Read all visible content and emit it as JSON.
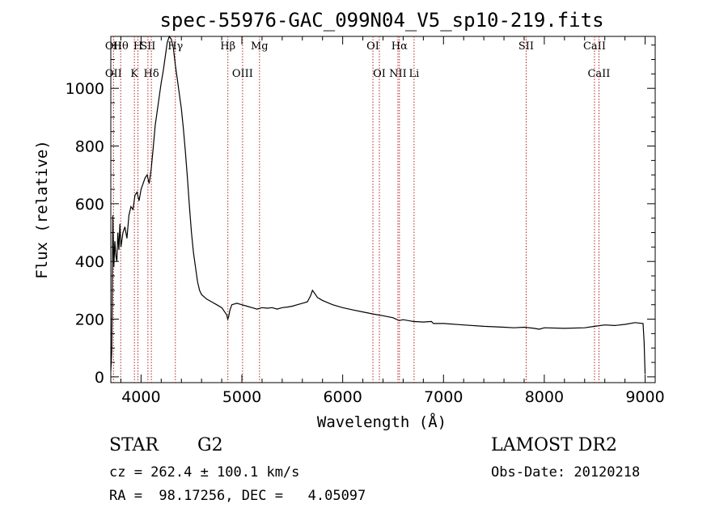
{
  "chart_data": {
    "type": "line",
    "title": "spec-55976-GAC_099N04_V5_sp10-219.fits",
    "xlabel": "Wavelength (Å)",
    "ylabel": "Flux (relative)",
    "xlim": [
      3700,
      9100
    ],
    "ylim": [
      -20,
      1180
    ],
    "xticks": [
      4000,
      5000,
      6000,
      7000,
      8000,
      9000
    ],
    "yticks": [
      0,
      200,
      400,
      600,
      800,
      1000
    ],
    "grid": false,
    "line_color": "#000000",
    "marker_color": "#b22222",
    "series": [
      {
        "x": [
          3700,
          3710,
          3720,
          3730,
          3740,
          3750,
          3760,
          3770,
          3780,
          3790,
          3800,
          3820,
          3840,
          3860,
          3880,
          3900,
          3920,
          3940,
          3960,
          3980,
          4000,
          4020,
          4040,
          4060,
          4080,
          4100,
          4120,
          4140,
          4160,
          4180,
          4200,
          4220,
          4240,
          4260,
          4280,
          4300,
          4320,
          4340,
          4360,
          4380,
          4400,
          4420,
          4440,
          4460,
          4480,
          4500,
          4520,
          4540,
          4560,
          4580,
          4600,
          4650,
          4700,
          4750,
          4800,
          4850,
          4860,
          4870,
          4880,
          4900,
          4950,
          5000,
          5050,
          5100,
          5150,
          5200,
          5250,
          5300,
          5350,
          5400,
          5450,
          5500,
          5550,
          5600,
          5650,
          5680,
          5700,
          5720,
          5750,
          5800,
          5900,
          6000,
          6100,
          6200,
          6300,
          6400,
          6500,
          6560,
          6600,
          6700,
          6800,
          6880,
          6900,
          7000,
          7200,
          7400,
          7600,
          7700,
          7800,
          7900,
          7950,
          8000,
          8200,
          8400,
          8500,
          8600,
          8700,
          8800,
          8900,
          8980,
          8990,
          9000
        ],
        "y": [
          20,
          90,
          560,
          380,
          470,
          420,
          400,
          500,
          440,
          530,
          450,
          500,
          520,
          480,
          560,
          590,
          580,
          630,
          640,
          610,
          650,
          670,
          690,
          700,
          670,
          720,
          790,
          870,
          920,
          970,
          1020,
          1060,
          1110,
          1160,
          1180,
          1170,
          1140,
          1080,
          1030,
          980,
          930,
          860,
          780,
          690,
          590,
          500,
          430,
          380,
          330,
          300,
          285,
          270,
          260,
          250,
          240,
          215,
          200,
          210,
          230,
          250,
          255,
          250,
          245,
          240,
          235,
          240,
          238,
          240,
          235,
          240,
          242,
          245,
          250,
          255,
          260,
          280,
          300,
          290,
          275,
          265,
          250,
          240,
          232,
          225,
          218,
          212,
          205,
          195,
          198,
          192,
          190,
          192,
          185,
          185,
          180,
          175,
          172,
          170,
          172,
          168,
          165,
          170,
          168,
          170,
          175,
          180,
          178,
          182,
          188,
          185,
          120,
          10
        ]
      }
    ],
    "line_markers": [
      {
        "x": 3727,
        "top": "OII",
        "bottom": "OII"
      },
      {
        "x": 3798,
        "top": "Hθ"
      },
      {
        "x": 3934,
        "bottom": "K"
      },
      {
        "x": 3969,
        "top": "H"
      },
      {
        "x": 4068,
        "top": "SII"
      },
      {
        "x": 4102,
        "bottom": "Hδ"
      },
      {
        "x": 4340,
        "top": "Hγ"
      },
      {
        "x": 4861,
        "top": "Hβ"
      },
      {
        "x": 5007,
        "bottom": "OIII"
      },
      {
        "x": 5175,
        "top": "Mg"
      },
      {
        "x": 6300,
        "top": "OI"
      },
      {
        "x": 6364,
        "bottom": "OI"
      },
      {
        "x": 6548,
        "bottom": "NII"
      },
      {
        "x": 6563,
        "top": "Hα"
      },
      {
        "x": 6708,
        "bottom": "Li"
      },
      {
        "x": 7820,
        "top": "SII"
      },
      {
        "x": 8498,
        "top": "CaII"
      },
      {
        "x": 8542,
        "bottom": "CaII"
      }
    ]
  },
  "info": {
    "class": "STAR",
    "subclass": "G2",
    "survey": "LAMOST DR2",
    "redshift": "cz = 262.4 ± 100.1 km/s",
    "obsdate": "Obs-Date: 20120218",
    "coords": "RA =  98.17256, DEC =   4.05097"
  }
}
